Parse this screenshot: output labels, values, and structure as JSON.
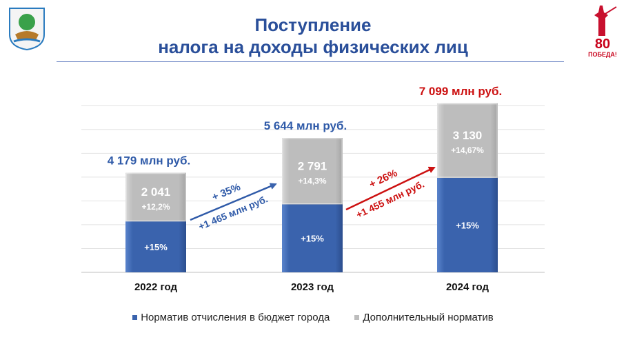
{
  "header": {
    "title_line1": "Поступление",
    "title_line2": "налога на доходы физических лиц",
    "emblem_icon": "city-coat-of-arms-icon",
    "badge_icon": "victory-80-badge-icon",
    "badge_text": "80",
    "badge_subtext": "ПОБЕДА!"
  },
  "colors": {
    "base": "#3a63ad",
    "additional": "#bdbdbd",
    "title": "#2a4f9a",
    "total_blue": "#2f5aa8",
    "total_red": "#cc1010"
  },
  "chart_data": {
    "type": "bar",
    "stacked": true,
    "categories": [
      "2022 год",
      "2023 год",
      "2024 год"
    ],
    "ylim": [
      0,
      7500
    ],
    "grid": true,
    "series": [
      {
        "name": "Норматив отчисления в бюджет города",
        "values": [
          2138,
          2853,
          3969
        ],
        "labels": [
          "+15%",
          "+15%",
          "+15%"
        ]
      },
      {
        "name": "Дополнительный норматив",
        "values": [
          2041,
          2791,
          3130
        ],
        "labels": [
          "2 041",
          "2 791",
          "3 130"
        ],
        "sublabels": [
          "+12,2%",
          "+14,3%",
          "+14,67%"
        ]
      }
    ],
    "totals": [
      4179,
      5644,
      7099
    ],
    "total_labels": [
      "4 179 млн руб.",
      "5 644 млн руб.",
      "7 099 млн руб."
    ],
    "total_label_colors": [
      "blue",
      "blue",
      "red"
    ],
    "growth_annotations": [
      {
        "percent": "+ 35%",
        "amount": "+1 465 млн руб.",
        "color": "blue"
      },
      {
        "percent": "+ 26%",
        "amount": "+1 455 млн руб.",
        "color": "red"
      }
    ],
    "legend": [
      "Норматив отчисления в бюджет города",
      "Дополнительный норматив"
    ]
  }
}
